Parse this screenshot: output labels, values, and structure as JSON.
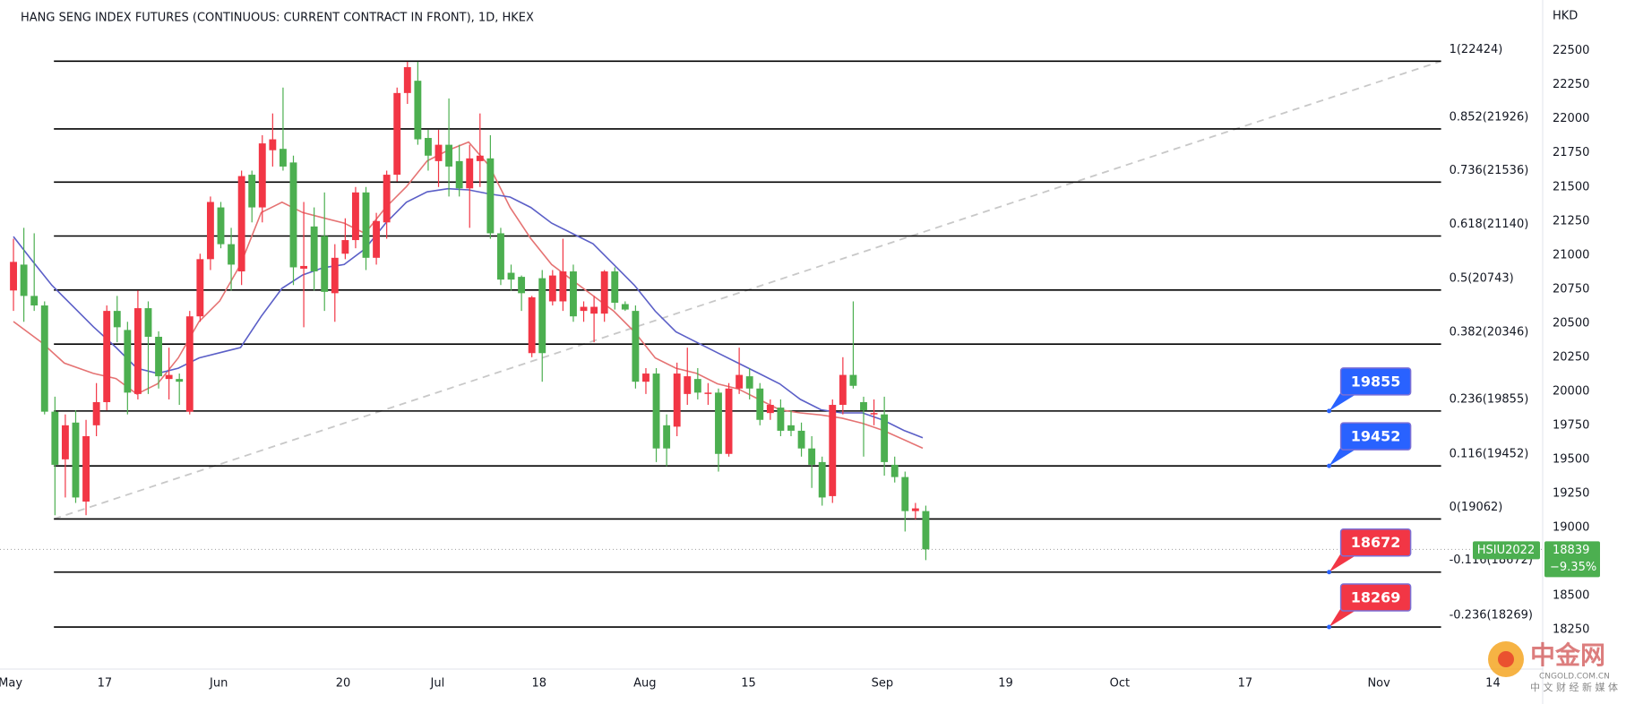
{
  "chart_data": {
    "type": "candlestick",
    "title": "HANG SENG INDEX FUTURES (CONTINUOUS: CURRENT CONTRACT IN FRONT), 1D, HKEX",
    "currency": "HKD",
    "up_color": "#f23645",
    "down_color": "#4caf50",
    "ylim": [
      17960,
      22873
    ],
    "yticks": [
      18250,
      18500,
      18750,
      19000,
      19250,
      19500,
      19750,
      20000,
      20250,
      20500,
      20750,
      21000,
      21250,
      21500,
      21750,
      22000,
      22250,
      22500
    ],
    "xlim": [
      -1.3,
      147.5
    ],
    "xticks": [
      {
        "value": -0.3,
        "label": "May"
      },
      {
        "value": 8.8,
        "label": "17"
      },
      {
        "value": 19.8,
        "label": "Jun"
      },
      {
        "value": 31.8,
        "label": "20"
      },
      {
        "value": 40.9,
        "label": "Jul"
      },
      {
        "value": 50.7,
        "label": "18"
      },
      {
        "value": 60.9,
        "label": "Aug"
      },
      {
        "value": 70.9,
        "label": "15"
      },
      {
        "value": 83.8,
        "label": "Sep"
      },
      {
        "value": 95.7,
        "label": "19"
      },
      {
        "value": 106.7,
        "label": "Oct"
      },
      {
        "value": 118.8,
        "label": "17"
      },
      {
        "value": 131.7,
        "label": "Nov"
      },
      {
        "value": 142.7,
        "label": "14"
      }
    ],
    "candles": {
      "open": [
        20740,
        20930,
        20700,
        20630,
        19850,
        19500,
        19770,
        19190,
        19750,
        19920,
        20590,
        20450,
        19980,
        20610,
        20400,
        20090,
        20090,
        19850,
        20550,
        20970,
        21350,
        21080,
        20880,
        21590,
        21350,
        21770,
        21780,
        21680,
        20900,
        21210,
        21140,
        20720,
        21010,
        21110,
        21460,
        20980,
        21240,
        21590,
        22190,
        22280,
        21860,
        21690,
        21810,
        21690,
        21490,
        21690,
        21710,
        21160,
        20870,
        20840,
        20280,
        20830,
        20660,
        20660,
        20880,
        20590,
        20570,
        20570,
        20880,
        20640,
        20590,
        20070,
        20130,
        19750,
        19740,
        19980,
        20090,
        19980,
        19990,
        19540,
        20020,
        20110,
        20020,
        19840,
        19880,
        19750,
        19710,
        19580,
        19480,
        19230,
        19900,
        20120,
        19920,
        19830,
        19830,
        19460,
        19370,
        19120,
        19120
      ],
      "high": [
        21120,
        21200,
        21160,
        20660,
        19960,
        19830,
        19860,
        19790,
        20060,
        20630,
        20700,
        20510,
        20740,
        20660,
        20440,
        20320,
        20130,
        20590,
        21010,
        21430,
        21390,
        21200,
        21620,
        21620,
        21880,
        22040,
        22230,
        21730,
        21390,
        21350,
        21460,
        21080,
        21270,
        21500,
        21500,
        21310,
        21620,
        22230,
        22420,
        22420,
        21920,
        21920,
        22150,
        21810,
        21810,
        22040,
        21880,
        21200,
        20930,
        20850,
        20700,
        20890,
        20890,
        21120,
        20930,
        20660,
        20700,
        20890,
        20910,
        20660,
        20630,
        20170,
        20170,
        19830,
        20210,
        20320,
        20170,
        20060,
        20020,
        20060,
        20320,
        20170,
        20060,
        19940,
        19940,
        19860,
        19770,
        19670,
        19520,
        19940,
        20250,
        20660,
        19960,
        19940,
        19960,
        19520,
        19410,
        19180,
        19160
      ],
      "low": [
        20590,
        20510,
        20590,
        19830,
        19090,
        19220,
        19180,
        19090,
        19670,
        19860,
        20360,
        19830,
        19940,
        19980,
        20020,
        19940,
        19900,
        19830,
        20510,
        20890,
        21050,
        20740,
        20780,
        21240,
        21240,
        21650,
        21620,
        20780,
        20470,
        20740,
        20590,
        20510,
        20970,
        21050,
        20890,
        20930,
        21120,
        21540,
        22110,
        21810,
        21620,
        21500,
        21430,
        21430,
        21200,
        21500,
        21120,
        20780,
        20740,
        20590,
        20250,
        20070,
        20630,
        20590,
        20510,
        20510,
        20360,
        20510,
        20600,
        20590,
        20020,
        19980,
        19480,
        19450,
        19670,
        19900,
        19940,
        19900,
        19410,
        19520,
        19980,
        19940,
        19750,
        19790,
        19670,
        19670,
        19520,
        19290,
        19160,
        19180,
        19830,
        20020,
        19520,
        19750,
        19380,
        19330,
        18970,
        19060,
        18760
      ],
      "close": [
        20950,
        20700,
        20630,
        19850,
        19460,
        19750,
        19220,
        19670,
        19920,
        20590,
        20470,
        19990,
        20610,
        20400,
        20110,
        20120,
        20070,
        20550,
        20970,
        21390,
        21080,
        20930,
        21580,
        21350,
        21820,
        21850,
        21650,
        20910,
        20920,
        20880,
        20730,
        20980,
        21110,
        21460,
        20980,
        21250,
        21590,
        22190,
        22380,
        21850,
        21730,
        21810,
        21650,
        21490,
        21710,
        21730,
        21160,
        20820,
        20820,
        20720,
        20690,
        20280,
        20850,
        20880,
        20550,
        20620,
        20620,
        20880,
        20650,
        20600,
        20070,
        20130,
        19580,
        19580,
        20130,
        20110,
        19990,
        19990,
        19540,
        20020,
        20120,
        20020,
        19790,
        19900,
        19710,
        19710,
        19580,
        19460,
        19220,
        19900,
        20120,
        20040,
        19860,
        19840,
        19480,
        19370,
        19120,
        19140,
        18839
      ]
    },
    "ma_fast": {
      "color": "#e57373",
      "x": [
        0,
        2.7,
        4.9,
        7.7,
        9.9,
        11.9,
        13.9,
        15.9,
        17.9,
        19.9,
        21.9,
        23.9,
        25.9,
        27.9,
        29.9,
        31.9,
        33.9,
        35.9,
        37.9,
        39.9,
        41.9,
        43.9,
        45.9,
        47.9,
        49.9,
        51.9,
        53.9,
        55.9,
        57.9,
        59.9,
        61.9,
        63.9,
        65.9,
        67.9,
        69.9,
        71.9,
        73.9,
        75.9,
        77.9,
        79.9,
        81.9,
        83.9,
        87.7
      ],
      "values": [
        20512,
        20359,
        20207,
        20131,
        20093,
        19979,
        20055,
        20245,
        20512,
        20664,
        20931,
        21312,
        21388,
        21312,
        21273,
        21235,
        21159,
        21350,
        21502,
        21692,
        21769,
        21830,
        21654,
        21350,
        21121,
        20931,
        20816,
        20702,
        20588,
        20436,
        20245,
        20169,
        20131,
        20055,
        20017,
        19940,
        19864,
        19841,
        19826,
        19803,
        19765,
        19712,
        19582
      ]
    },
    "ma_slow": {
      "color": "#5b5fc7",
      "x": [
        0,
        1.7,
        3.7,
        5.7,
        7.7,
        9.9,
        11.9,
        13.9,
        15.9,
        17.9,
        19.9,
        21.9,
        23.9,
        25.9,
        27.9,
        29.9,
        31.9,
        33.9,
        35.9,
        37.9,
        39.9,
        41.9,
        43.9,
        45.9,
        47.9,
        49.9,
        51.9,
        53.9,
        55.9,
        57.9,
        59.9,
        61.9,
        63.9,
        65.9,
        67.9,
        69.9,
        71.9,
        73.9,
        75.9,
        77.9,
        79.9,
        81.9,
        83.9,
        85.9,
        87.7
      ],
      "values": [
        21136,
        20969,
        20778,
        20626,
        20474,
        20321,
        20169,
        20131,
        20169,
        20245,
        20283,
        20321,
        20550,
        20756,
        20854,
        20908,
        20931,
        21045,
        21235,
        21388,
        21464,
        21487,
        21479,
        21449,
        21426,
        21350,
        21235,
        21159,
        21083,
        20931,
        20778,
        20588,
        20436,
        20359,
        20283,
        20207,
        20131,
        20055,
        19940,
        19864,
        19841,
        19841,
        19788,
        19712,
        19659
      ]
    },
    "fib_x": [
      3.9,
      137.7
    ],
    "fib_levels": [
      {
        "label": "1(22424)",
        "value": 22424
      },
      {
        "label": "0.852(21926)",
        "value": 21926
      },
      {
        "label": "0.736(21536)",
        "value": 21536
      },
      {
        "label": "0.618(21140)",
        "value": 21140
      },
      {
        "label": "0.5(20743)",
        "value": 20743
      },
      {
        "label": "0.382(20346)",
        "value": 20346
      },
      {
        "label": "0.236(19855)",
        "value": 19855
      },
      {
        "label": "0.116(19452)",
        "value": 19452
      },
      {
        "label": "0(19062)",
        "value": 19062
      },
      {
        "label": "-0.116(18672)",
        "value": 18672
      },
      {
        "label": "-0.236(18269)",
        "value": 18269
      }
    ],
    "trend_line": {
      "x": [
        3.9,
        137.7
      ],
      "values": [
        19062,
        22424
      ]
    },
    "callout_x": 126.9,
    "price_callouts": [
      {
        "value": 19855,
        "color": "#2962ff"
      },
      {
        "value": 19452,
        "color": "#2962ff"
      },
      {
        "value": 18672,
        "color": "#f23645"
      },
      {
        "value": 18269,
        "color": "#f23645"
      }
    ],
    "last_price": {
      "symbol": "HSIU2022",
      "value": 18839,
      "change": "−9.35%",
      "color": "#4caf50"
    },
    "watermark": {
      "name": "中金网",
      "site": "CNGOLD.COM.CN",
      "slogan": "中 文 财 经 新 媒 体"
    }
  }
}
